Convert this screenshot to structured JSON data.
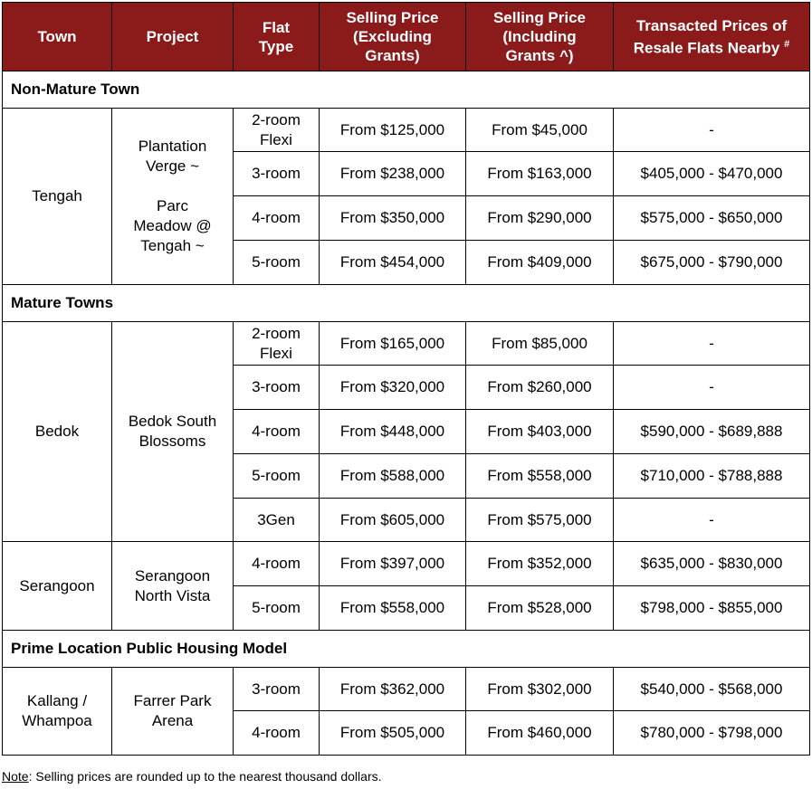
{
  "header": {
    "town": "Town",
    "project": "Project",
    "flat_type": [
      "Flat",
      "Type"
    ],
    "excl": [
      "Selling Price",
      "(Excluding",
      "Grants)"
    ],
    "incl": [
      "Selling Price",
      "(Including",
      "Grants ^)"
    ],
    "resale": [
      "Transacted Prices of",
      "Resale Flats Nearby"
    ],
    "resale_mark": "#"
  },
  "sections": [
    {
      "title": "Non-Mature Town",
      "groups": [
        {
          "town": [
            "Tengah"
          ],
          "project": [
            "Plantation",
            "Verge ~",
            "",
            "Parc",
            "Meadow @",
            "Tengah ~"
          ],
          "rows": [
            {
              "flat": [
                "2-room",
                "Flexi"
              ],
              "excl": "From $125,000",
              "incl": "From $45,000",
              "resale": "-"
            },
            {
              "flat": [
                "3-room"
              ],
              "excl": "From $238,000",
              "incl": "From $163,000",
              "resale": "$405,000 - $470,000"
            },
            {
              "flat": [
                "4-room"
              ],
              "excl": "From $350,000",
              "incl": "From $290,000",
              "resale": "$575,000 - $650,000"
            },
            {
              "flat": [
                "5-room"
              ],
              "excl": "From $454,000",
              "incl": "From $409,000",
              "resale": "$675,000 - $790,000"
            }
          ]
        }
      ]
    },
    {
      "title": "Mature Towns",
      "groups": [
        {
          "town": [
            "Bedok"
          ],
          "project": [
            "Bedok South",
            "Blossoms"
          ],
          "rows": [
            {
              "flat": [
                "2-room",
                "Flexi"
              ],
              "excl": "From $165,000",
              "incl": "From $85,000",
              "resale": "-"
            },
            {
              "flat": [
                "3-room"
              ],
              "excl": "From $320,000",
              "incl": "From $260,000",
              "resale": "-"
            },
            {
              "flat": [
                "4-room"
              ],
              "excl": "From $448,000",
              "incl": "From $403,000",
              "resale": "$590,000 - $689,888"
            },
            {
              "flat": [
                "5-room"
              ],
              "excl": "From $588,000",
              "incl": "From $558,000",
              "resale": "$710,000 - $788,888"
            },
            {
              "flat": [
                "3Gen"
              ],
              "excl": "From $605,000",
              "incl": "From $575,000",
              "resale": "-"
            }
          ]
        },
        {
          "town": [
            "Serangoon"
          ],
          "project": [
            "Serangoon",
            "North Vista"
          ],
          "rows": [
            {
              "flat": [
                "4-room"
              ],
              "excl": "From $397,000",
              "incl": "From $352,000",
              "resale": "$635,000 - $830,000"
            },
            {
              "flat": [
                "5-room"
              ],
              "excl": "From $558,000",
              "incl": "From $528,000",
              "resale": "$798,000 - $855,000"
            }
          ]
        }
      ]
    },
    {
      "title": "Prime Location Public Housing Model",
      "groups": [
        {
          "town": [
            "Kallang /",
            "Whampoa"
          ],
          "project": [
            "Farrer Park",
            "Arena"
          ],
          "rows": [
            {
              "flat": [
                "3-room"
              ],
              "excl": "From $362,000",
              "incl": "From $302,000",
              "resale": "$540,000 - $568,000"
            },
            {
              "flat": [
                "4-room"
              ],
              "excl": "From $505,000",
              "incl": "From $460,000",
              "resale": "$780,000 - $798,000"
            }
          ]
        }
      ]
    }
  ],
  "note": {
    "label": "Note",
    "text": ": Selling prices are rounded up to the nearest thousand dollars."
  }
}
